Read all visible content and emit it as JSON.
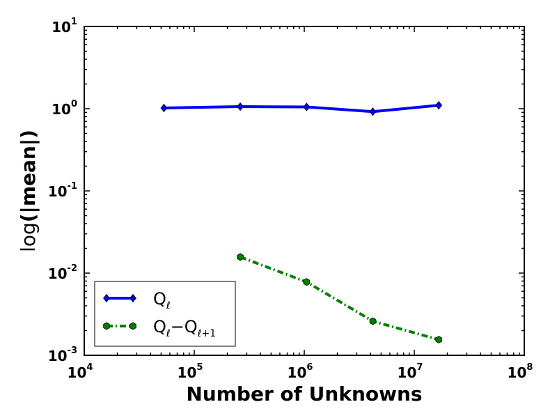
{
  "chart_data": {
    "type": "line",
    "title": "",
    "xlabel": "Number of Unknowns",
    "ylabel_prefix": "log",
    "ylabel_main": "(|mean|)",
    "xscale": "log",
    "yscale": "log",
    "xlim": [
      10000,
      100000000
    ],
    "ylim": [
      0.001,
      10
    ],
    "x_ticks": [
      {
        "base": "10",
        "exp": "4",
        "value": 10000
      },
      {
        "base": "10",
        "exp": "5",
        "value": 100000
      },
      {
        "base": "10",
        "exp": "6",
        "value": 1000000
      },
      {
        "base": "10",
        "exp": "7",
        "value": 10000000
      },
      {
        "base": "10",
        "exp": "8",
        "value": 100000000
      }
    ],
    "y_ticks": [
      {
        "base": "10",
        "exp": "-3",
        "value": 0.001
      },
      {
        "base": "10",
        "exp": "-2",
        "value": 0.01
      },
      {
        "base": "10",
        "exp": "-1",
        "value": 0.1
      },
      {
        "base": "10",
        "exp": "0",
        "value": 1
      },
      {
        "base": "10",
        "exp": "1",
        "value": 10
      }
    ],
    "grid": false,
    "legend_position": "lower-left",
    "series": [
      {
        "name_main": "Q",
        "name_sub": "ℓ",
        "color": "#0000ff",
        "style": "solid",
        "marker": "diamond",
        "x": [
          53000,
          262000,
          1050000,
          4200000,
          16700000
        ],
        "y": [
          1.02,
          1.06,
          1.05,
          0.92,
          1.1
        ]
      },
      {
        "name_main": "Q",
        "name_sub": "ℓ",
        "name_mid": "−Q",
        "name_sub2": "ℓ+1",
        "color": "#008000",
        "style": "dashdot",
        "marker": "hexagon",
        "x": [
          262000,
          1050000,
          4200000,
          16700000
        ],
        "y": [
          0.0157,
          0.0078,
          0.0026,
          0.00155
        ]
      }
    ]
  }
}
